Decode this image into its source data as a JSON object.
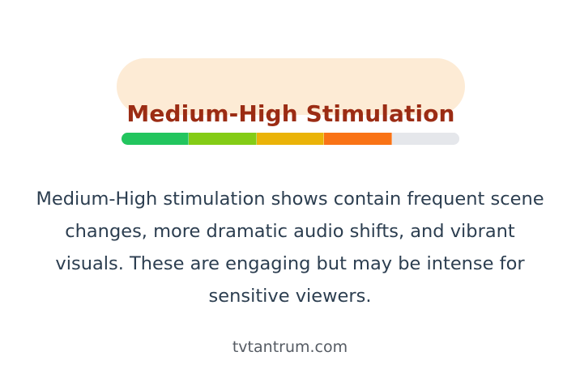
{
  "rating": {
    "title": "Medium-High Stimulation",
    "level": 4,
    "max_level": 5,
    "segment_colors": [
      "#22c55e",
      "#84cc16",
      "#eab308",
      "#f97316",
      "#e5e7eb"
    ],
    "empty_color": "#e5e7eb"
  },
  "description": "Medium-High stimulation shows contain frequent scene changes, more dramatic audio shifts, and vibrant visuals. These are engaging but may be intense for sensitive viewers.",
  "footer": {
    "site": "tvtantrum.com"
  },
  "colors": {
    "pill_background": "#fdebd5",
    "title_text": "#9b2c14",
    "body_text": "#2c3e50",
    "footer_text": "#555b63"
  }
}
